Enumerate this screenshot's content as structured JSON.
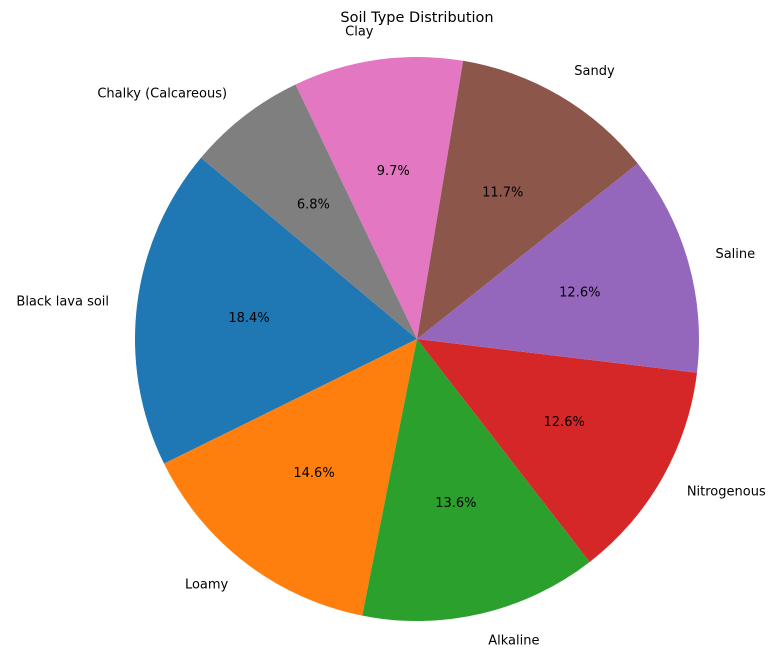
{
  "chart_data": {
    "type": "pie",
    "title": "Soil Type Distribution",
    "start_angle": 140,
    "direction": "counterclockwise",
    "slices": [
      {
        "label": "Black lava soil",
        "value": 18.4,
        "pct_label": "18.4%",
        "color": "#1f77b4"
      },
      {
        "label": "Loamy",
        "value": 14.6,
        "pct_label": "14.6%",
        "color": "#ff7f0e"
      },
      {
        "label": "Alkaline",
        "value": 13.6,
        "pct_label": "13.6%",
        "color": "#2ca02c"
      },
      {
        "label": "Nitrogenous",
        "value": 12.6,
        "pct_label": "12.6%",
        "color": "#d62728"
      },
      {
        "label": "Saline",
        "value": 12.6,
        "pct_label": "12.6%",
        "color": "#9467bd"
      },
      {
        "label": "Sandy",
        "value": 11.7,
        "pct_label": "11.7%",
        "color": "#8c564b"
      },
      {
        "label": "Clay",
        "value": 9.7,
        "pct_label": "9.7%",
        "color": "#e377c2"
      },
      {
        "label": "Chalky (Calcareous)",
        "value": 6.8,
        "pct_label": "6.8%",
        "color": "#7f7f7f"
      }
    ]
  }
}
